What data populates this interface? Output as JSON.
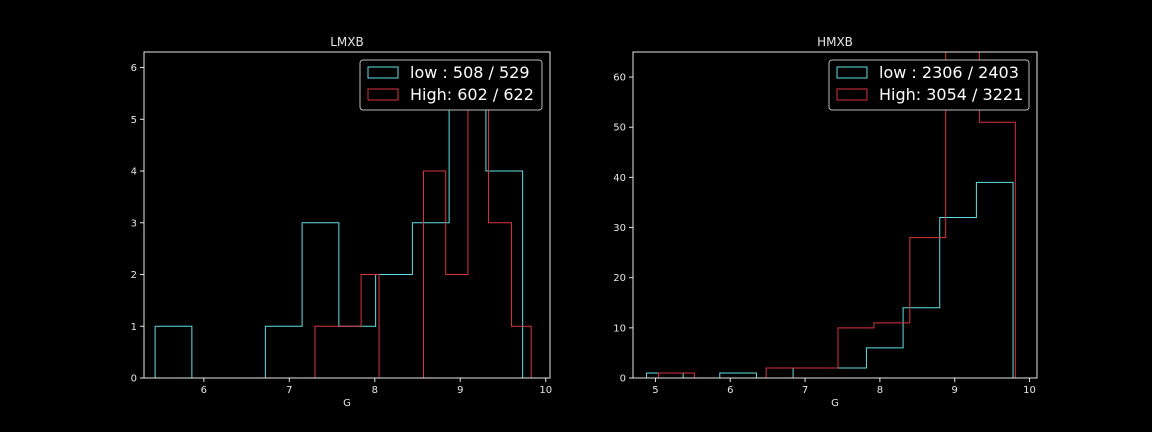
{
  "chart_data": [
    {
      "type": "histogram",
      "title": "LMXB",
      "xlabel": "G",
      "ylabel": "",
      "xlim": [
        5.3,
        10.05
      ],
      "ylim": [
        0,
        6.3
      ],
      "xticks": [
        6,
        7,
        8,
        9,
        10
      ],
      "yticks": [
        0,
        1,
        2,
        3,
        4,
        5,
        6
      ],
      "legend_position": "top-right",
      "series": [
        {
          "name": "low : 508 / 529",
          "color": "#5fe0e6",
          "bin_edges": [
            5.43,
            5.86,
            6.29,
            6.72,
            7.15,
            7.58,
            8.01,
            8.44,
            8.87,
            9.3,
            9.73
          ],
          "counts": [
            1,
            0,
            0,
            1,
            3,
            1,
            2,
            3,
            6,
            4
          ]
        },
        {
          "name": "High: 602 / 622",
          "color": "#d8343e",
          "bin_edges": [
            7.3,
            7.57,
            7.84,
            8.05,
            8.57,
            8.83,
            9.09,
            9.33,
            9.6,
            9.83
          ],
          "counts": [
            1,
            1,
            2,
            0,
            4,
            2,
            6,
            3,
            1
          ]
        }
      ]
    },
    {
      "type": "histogram",
      "title": "HMXB",
      "xlabel": "G",
      "ylabel": "",
      "xlim": [
        4.7,
        10.1
      ],
      "ylim": [
        0,
        65
      ],
      "xticks": [
        5,
        6,
        7,
        8,
        9,
        10
      ],
      "yticks": [
        0,
        10,
        20,
        30,
        40,
        50,
        60
      ],
      "legend_position": "top-right",
      "series": [
        {
          "name": "low : 2306 / 2403",
          "color": "#5fe0e6",
          "bin_edges": [
            4.88,
            5.37,
            5.86,
            6.35,
            6.84,
            7.33,
            7.82,
            8.31,
            8.8,
            9.29,
            9.78
          ],
          "counts": [
            1,
            0,
            1,
            0,
            2,
            2,
            6,
            14,
            32,
            39
          ]
        },
        {
          "name": "High: 3054 / 3221",
          "color": "#d8343e",
          "bin_edges": [
            5.04,
            5.52,
            6.0,
            6.48,
            6.96,
            7.44,
            7.92,
            8.4,
            8.88,
            9.33,
            9.81
          ],
          "counts": [
            1,
            0,
            0,
            2,
            2,
            10,
            11,
            28,
            69,
            51
          ]
        }
      ]
    }
  ]
}
